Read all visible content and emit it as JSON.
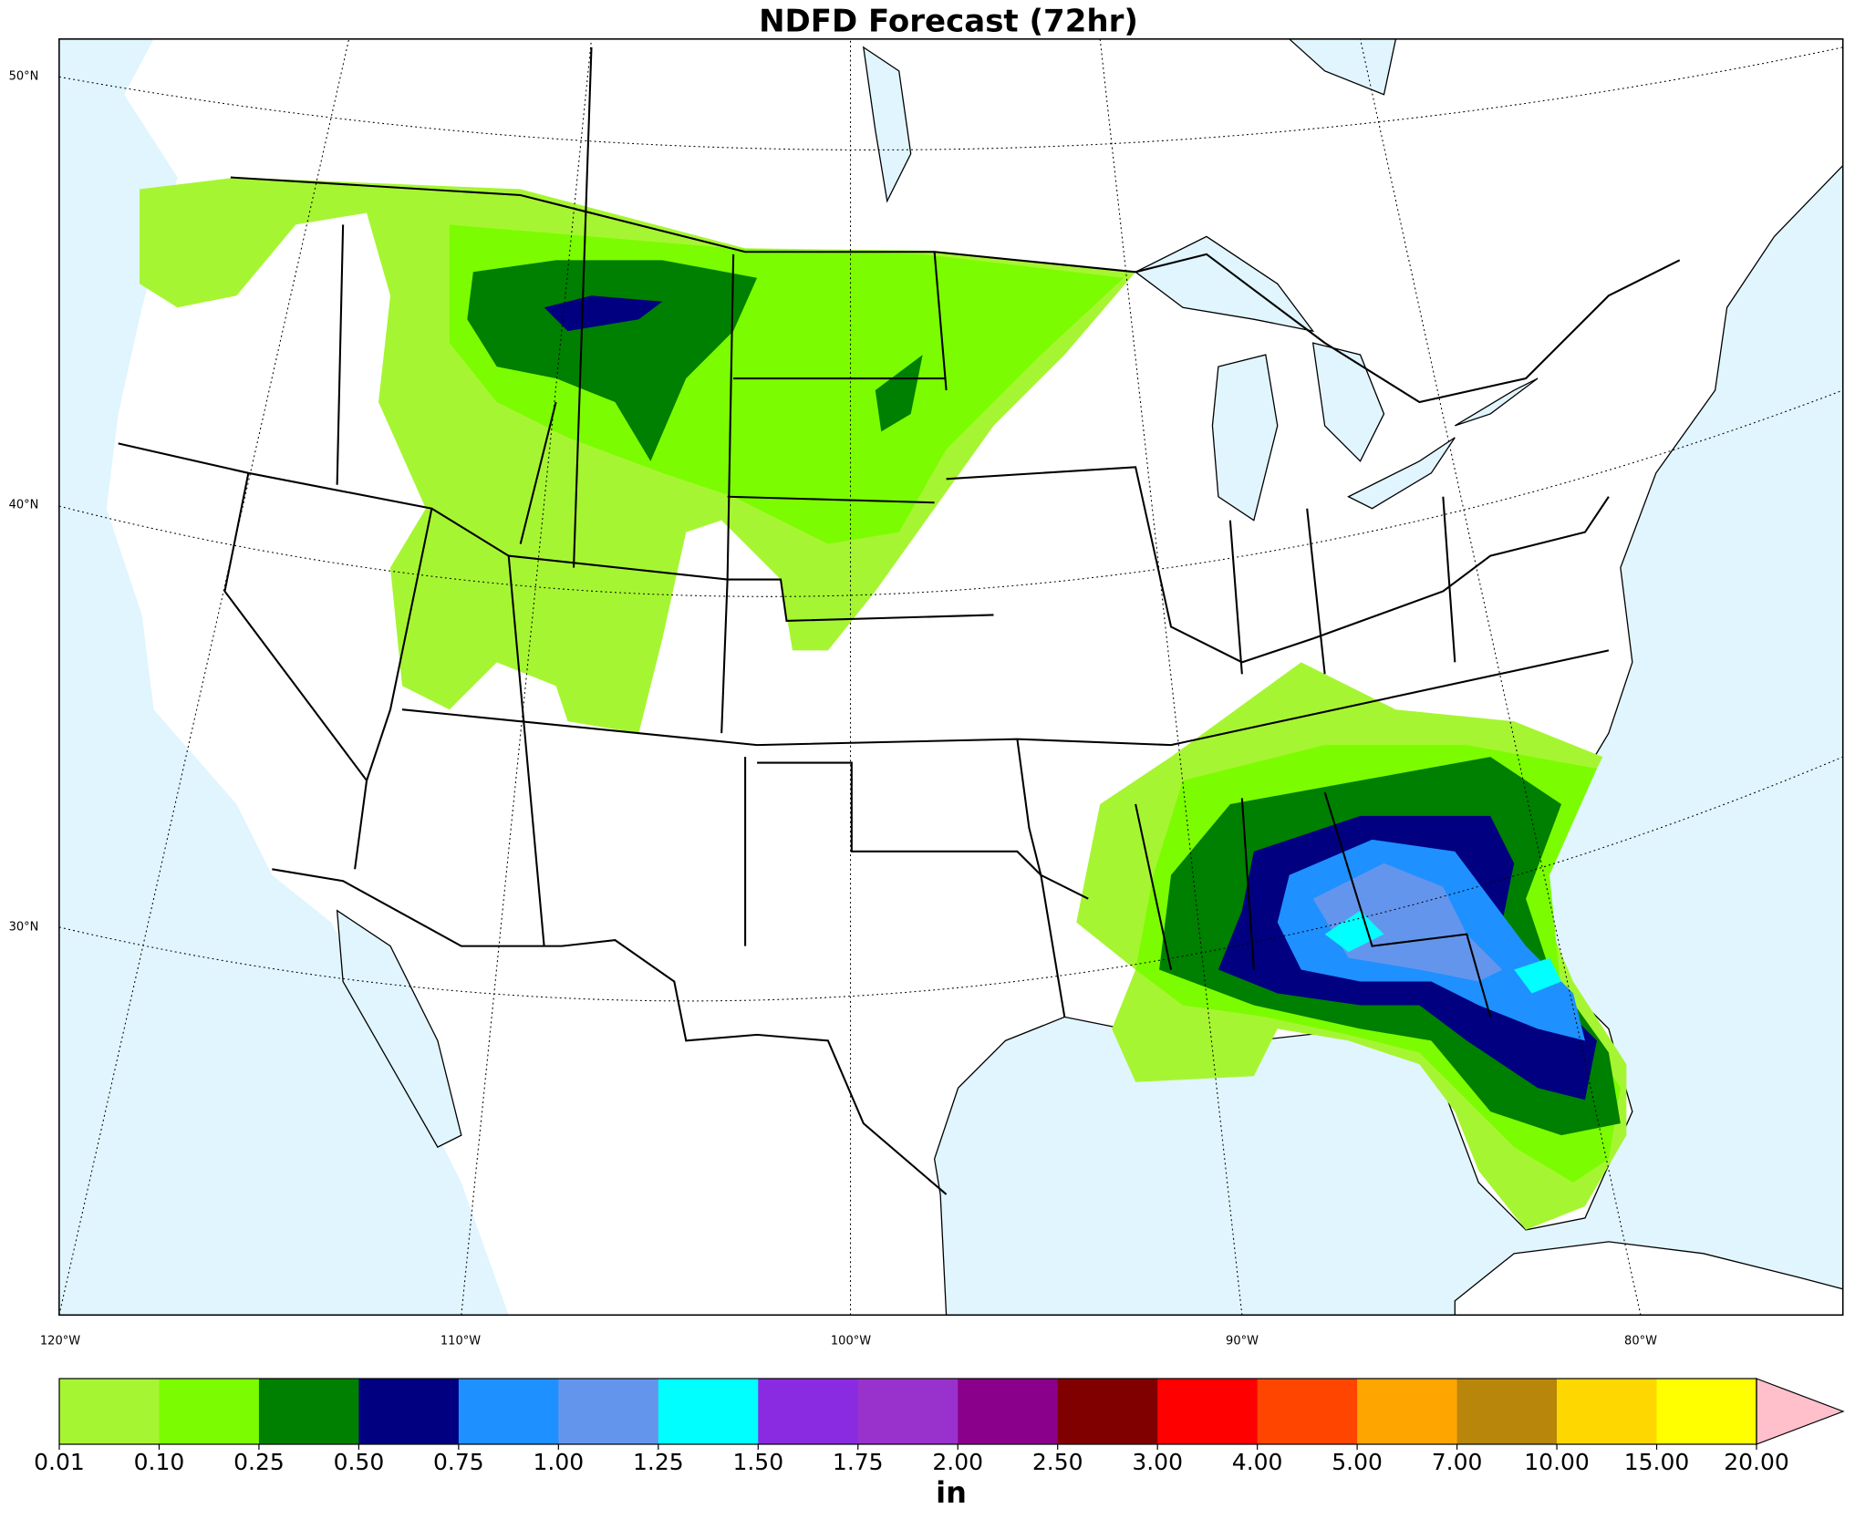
{
  "title": "NDFD Forecast (72hr)",
  "map": {
    "lat_labels": [
      "50°N",
      "40°N",
      "30°N"
    ],
    "lon_labels": [
      "120°W",
      "110°W",
      "100°W",
      "90°W",
      "80°W"
    ]
  },
  "colorbar": {
    "label": "in",
    "bounds": [
      0.01,
      {
        "value": 0.1,
        "label": "0.10"
      },
      {
        "value": 0.25,
        "label": "0.25"
      },
      {
        "value": 0.5,
        "label": "0.50"
      },
      {
        "value": 0.75,
        "label": "0.75"
      },
      {
        "value": 1,
        "label": "1.00"
      },
      {
        "value": 1.25,
        "label": "1.25"
      },
      {
        "value": 1.5,
        "label": "1.50"
      },
      {
        "value": 1.75,
        "label": "1.75"
      },
      {
        "value": 2,
        "label": "2.00"
      },
      {
        "value": 2.5,
        "label": "2.50"
      },
      {
        "value": 3,
        "label": "3.00"
      },
      {
        "value": 4,
        "label": "4.00"
      },
      {
        "value": 5,
        "label": "5.00"
      },
      {
        "value": 7,
        "label": "7.00"
      },
      {
        "value": 10,
        "label": "10.00"
      },
      {
        "value": 15,
        "label": "15.00"
      },
      {
        "value": 20,
        "label": "20.00"
      }
    ],
    "colors": [
      "#a6f532",
      "#7cfc00",
      "#008000",
      "#000080",
      "#1e90ff",
      "#6495ed",
      "#00ffff",
      "#8a2be2",
      "#9932cc",
      "#8b008b",
      "#800000",
      "#ff0000",
      "#ff4500",
      "#ffa500",
      "#b8860b",
      "#ffd700",
      "#ffff00"
    ],
    "extend_color": "#ffc0cb"
  }
}
